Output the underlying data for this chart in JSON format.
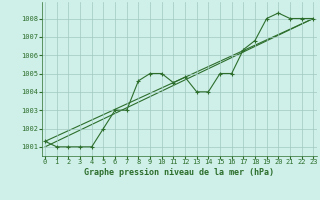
{
  "title": "Graphe pression niveau de la mer (hPa)",
  "hours": [
    0,
    1,
    2,
    3,
    4,
    5,
    6,
    7,
    8,
    9,
    10,
    11,
    12,
    13,
    14,
    15,
    16,
    17,
    18,
    19,
    20,
    21,
    22,
    23
  ],
  "pressure": [
    1001.3,
    1001.0,
    1001.0,
    1001.0,
    1001.0,
    1002.0,
    1003.0,
    1003.0,
    1004.6,
    1005.0,
    1005.0,
    1004.5,
    1004.8,
    1004.0,
    1004.0,
    1005.0,
    1005.0,
    1006.3,
    1006.8,
    1008.0,
    1008.3,
    1008.0,
    1008.0,
    1008.0
  ],
  "trend_line": [
    [
      0,
      23
    ],
    [
      1001.0,
      1008.0
    ]
  ],
  "trend_line2": [
    [
      0,
      23
    ],
    [
      1001.3,
      1008.0
    ]
  ],
  "ylim": [
    1000.5,
    1008.9
  ],
  "yticks": [
    1001,
    1002,
    1003,
    1004,
    1005,
    1006,
    1007,
    1008
  ],
  "xticks": [
    0,
    1,
    2,
    3,
    4,
    5,
    6,
    7,
    8,
    9,
    10,
    11,
    12,
    13,
    14,
    15,
    16,
    17,
    18,
    19,
    20,
    21,
    22,
    23
  ],
  "line_color": "#2d6e2d",
  "trend_color": "#2d6e2d",
  "bg_color": "#cff0e8",
  "grid_color": "#a0c8c0",
  "title_color": "#2d6e2d",
  "title_fontsize": 6.0,
  "tick_fontsize": 5.0,
  "marker": "+",
  "marker_size": 3,
  "linewidth": 0.8,
  "trend_linewidth": 0.8
}
